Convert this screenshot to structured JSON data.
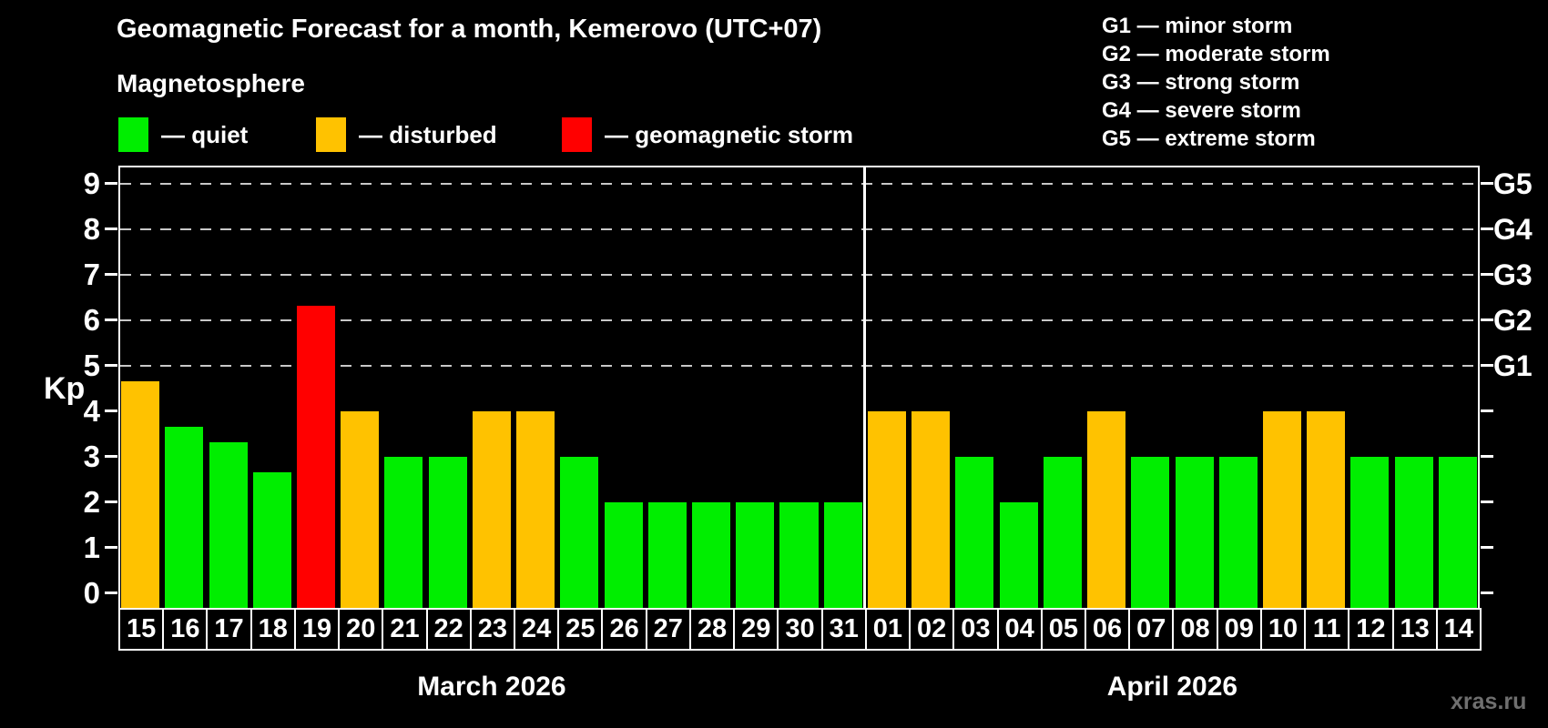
{
  "header": {
    "title": "Geomagnetic Forecast for a month, Kemerovo (UTC+07)",
    "subtitle": "Magnetosphere"
  },
  "legend": {
    "items": [
      {
        "key": "quiet",
        "label": "— quiet"
      },
      {
        "key": "disturbed",
        "label": "— disturbed"
      },
      {
        "key": "storm",
        "label": "— geomagnetic storm"
      }
    ]
  },
  "g_legend": {
    "items": [
      "G1 — minor storm",
      "G2 — moderate storm",
      "G3 — strong storm",
      "G4 — severe storm",
      "G5 — extreme storm"
    ]
  },
  "watermark": "xras.ru",
  "chart_data": {
    "type": "bar",
    "title": "Geomagnetic Forecast for a month, Kemerovo (UTC+07)",
    "ylabel": "Kp",
    "ylim": [
      0,
      9
    ],
    "y_ticks": [
      0,
      1,
      2,
      3,
      4,
      5,
      6,
      7,
      8,
      9
    ],
    "grid": "horizontal dashed lines at Kp 5,6,7,8,9",
    "legend_position": "top",
    "right_axis_labels": [
      {
        "label": "G1",
        "kp": 5
      },
      {
        "label": "G2",
        "kp": 6
      },
      {
        "label": "G3",
        "kp": 7
      },
      {
        "label": "G4",
        "kp": 8
      },
      {
        "label": "G5",
        "kp": 9
      }
    ],
    "colors": {
      "quiet": "#00ee00",
      "disturbed": "#ffc200",
      "storm": "#ff0000",
      "background": "#000000",
      "text": "#ffffff",
      "gridline": "#c8c8c8",
      "watermark": "#6f6f6f"
    },
    "months": [
      {
        "label": "March 2026",
        "days": [
          {
            "day": "15",
            "kp": 4.67,
            "condition": "disturbed"
          },
          {
            "day": "16",
            "kp": 3.67,
            "condition": "quiet"
          },
          {
            "day": "17",
            "kp": 3.33,
            "condition": "quiet"
          },
          {
            "day": "18",
            "kp": 2.67,
            "condition": "quiet"
          },
          {
            "day": "19",
            "kp": 6.33,
            "condition": "storm"
          },
          {
            "day": "20",
            "kp": 4,
            "condition": "disturbed"
          },
          {
            "day": "21",
            "kp": 3,
            "condition": "quiet"
          },
          {
            "day": "22",
            "kp": 3,
            "condition": "quiet"
          },
          {
            "day": "23",
            "kp": 4,
            "condition": "disturbed"
          },
          {
            "day": "24",
            "kp": 4,
            "condition": "disturbed"
          },
          {
            "day": "25",
            "kp": 3,
            "condition": "quiet"
          },
          {
            "day": "26",
            "kp": 2,
            "condition": "quiet"
          },
          {
            "day": "27",
            "kp": 2,
            "condition": "quiet"
          },
          {
            "day": "28",
            "kp": 2,
            "condition": "quiet"
          },
          {
            "day": "29",
            "kp": 2,
            "condition": "quiet"
          },
          {
            "day": "30",
            "kp": 2,
            "condition": "quiet"
          },
          {
            "day": "31",
            "kp": 2,
            "condition": "quiet"
          }
        ]
      },
      {
        "label": "April 2026",
        "days": [
          {
            "day": "01",
            "kp": 4,
            "condition": "disturbed"
          },
          {
            "day": "02",
            "kp": 4,
            "condition": "disturbed"
          },
          {
            "day": "03",
            "kp": 3,
            "condition": "quiet"
          },
          {
            "day": "04",
            "kp": 2,
            "condition": "quiet"
          },
          {
            "day": "05",
            "kp": 3,
            "condition": "quiet"
          },
          {
            "day": "06",
            "kp": 4,
            "condition": "disturbed"
          },
          {
            "day": "07",
            "kp": 3,
            "condition": "quiet"
          },
          {
            "day": "08",
            "kp": 3,
            "condition": "quiet"
          },
          {
            "day": "09",
            "kp": 3,
            "condition": "quiet"
          },
          {
            "day": "10",
            "kp": 4,
            "condition": "disturbed"
          },
          {
            "day": "11",
            "kp": 4,
            "condition": "disturbed"
          },
          {
            "day": "12",
            "kp": 3,
            "condition": "quiet"
          },
          {
            "day": "13",
            "kp": 3,
            "condition": "quiet"
          },
          {
            "day": "14",
            "kp": 3,
            "condition": "quiet"
          }
        ]
      }
    ]
  }
}
